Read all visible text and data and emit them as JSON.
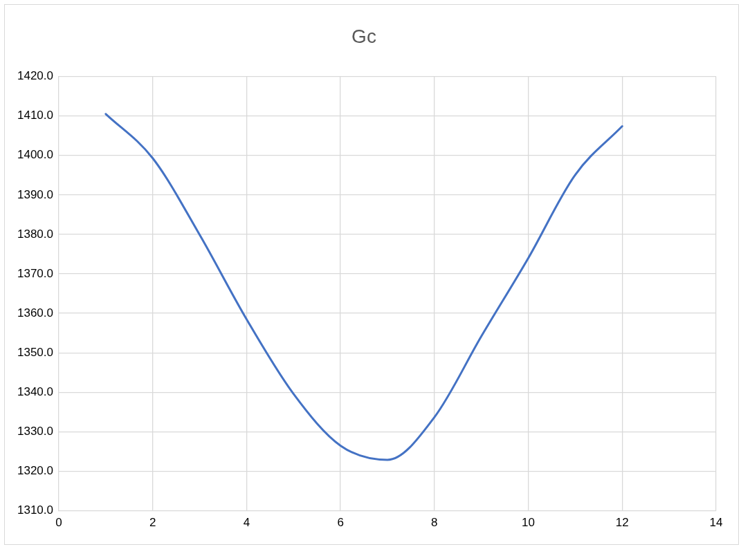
{
  "chart_data": {
    "type": "line",
    "title": "Gc",
    "x": [
      1,
      2,
      3,
      4,
      5,
      6,
      7,
      8,
      9,
      10,
      11,
      12
    ],
    "series": [
      {
        "color": "#4472c4",
        "values": [
          1410.5,
          1399.3,
          1379.9,
          1358.5,
          1339.6,
          1326.5,
          1322.9,
          1333.7,
          1354.2,
          1374.0,
          1395.1,
          1407.4
        ]
      }
    ],
    "xlim": [
      0,
      14
    ],
    "xticks": [
      0,
      2,
      4,
      6,
      8,
      10,
      12,
      14
    ],
    "ylim": [
      1310,
      1420
    ],
    "yticks": [
      {
        "value": 1310,
        "label": "1310.0"
      },
      {
        "value": 1320,
        "label": "1320.0"
      },
      {
        "value": 1330,
        "label": "1330.0"
      },
      {
        "value": 1340,
        "label": "1340.0"
      },
      {
        "value": 1350,
        "label": "1350.0"
      },
      {
        "value": 1360,
        "label": "1360.0"
      },
      {
        "value": 1370,
        "label": "1370.0"
      },
      {
        "value": 1380,
        "label": "1380.0"
      },
      {
        "value": 1390,
        "label": "1390.0"
      },
      {
        "value": 1400,
        "label": "1400.0"
      },
      {
        "value": 1410,
        "label": "1410.0"
      },
      {
        "value": 1420,
        "label": "1420.0"
      }
    ],
    "grid": true,
    "legend": false,
    "marker": "none",
    "line_style": "solid"
  }
}
